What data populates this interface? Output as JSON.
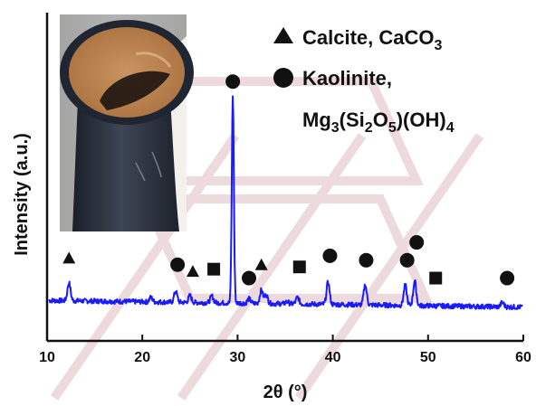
{
  "chart_data": {
    "type": "line",
    "xlabel": "2θ (°)",
    "ylabel": "Intensity (a.u.)",
    "xlim": [
      10,
      60
    ],
    "x_ticks": [
      10,
      20,
      30,
      40,
      50,
      60
    ],
    "y_ticks_shown": false,
    "series": [
      {
        "color": "#1a1aff",
        "baseline": 0.08,
        "peaks": [
          {
            "x": 12.3,
            "y": 0.16
          },
          {
            "x": 20.9,
            "y": 0.1
          },
          {
            "x": 23.5,
            "y": 0.13
          },
          {
            "x": 25.0,
            "y": 0.11
          },
          {
            "x": 27.3,
            "y": 0.11
          },
          {
            "x": 29.5,
            "y": 1.0
          },
          {
            "x": 31.2,
            "y": 0.1
          },
          {
            "x": 32.5,
            "y": 0.14
          },
          {
            "x": 33.0,
            "y": 0.12
          },
          {
            "x": 35.2,
            "y": 0.09
          },
          {
            "x": 36.3,
            "y": 0.11
          },
          {
            "x": 39.5,
            "y": 0.18
          },
          {
            "x": 43.4,
            "y": 0.17
          },
          {
            "x": 47.6,
            "y": 0.17
          },
          {
            "x": 48.6,
            "y": 0.19
          },
          {
            "x": 57.8,
            "y": 0.1
          }
        ]
      }
    ],
    "markers": [
      {
        "shape": "triangle",
        "x": 12.3,
        "y": 0.27
      },
      {
        "shape": "circle",
        "x": 23.7,
        "y": 0.24
      },
      {
        "shape": "triangle",
        "x": 25.3,
        "y": 0.21
      },
      {
        "shape": "square",
        "x": 27.5,
        "y": 0.22
      },
      {
        "shape": "circle",
        "x": 29.5,
        "y": 1.06
      },
      {
        "shape": "circle",
        "x": 31.2,
        "y": 0.18
      },
      {
        "shape": "triangle",
        "x": 32.5,
        "y": 0.24
      },
      {
        "shape": "square",
        "x": 36.5,
        "y": 0.23
      },
      {
        "shape": "circle",
        "x": 39.7,
        "y": 0.28
      },
      {
        "shape": "circle",
        "x": 43.5,
        "y": 0.26
      },
      {
        "shape": "circle",
        "x": 47.8,
        "y": 0.26
      },
      {
        "shape": "circle",
        "x": 48.8,
        "y": 0.34
      },
      {
        "shape": "square",
        "x": 50.8,
        "y": 0.18
      },
      {
        "shape": "circle",
        "x": 58.3,
        "y": 0.18
      }
    ],
    "legend": {
      "placement": "top-right",
      "entries": [
        {
          "shape": "triangle",
          "label": "Calcite, CaCO",
          "sub": "3"
        },
        {
          "shape": "circle",
          "label": "Kaolinite,"
        }
      ],
      "formula": {
        "parts": [
          {
            "text": "Mg"
          },
          {
            "text": "3",
            "sub": true
          },
          {
            "text": "(Si"
          },
          {
            "text": "2",
            "sub": true
          },
          {
            "text": "O"
          },
          {
            "text": "5",
            "sub": true
          },
          {
            "text": ")(OH)"
          },
          {
            "text": "4",
            "sub": true
          }
        ]
      }
    },
    "inset": {
      "description_icon": "pipe-photo",
      "placement": "top-left"
    },
    "background_watermark_color": "#e9cfd3"
  }
}
